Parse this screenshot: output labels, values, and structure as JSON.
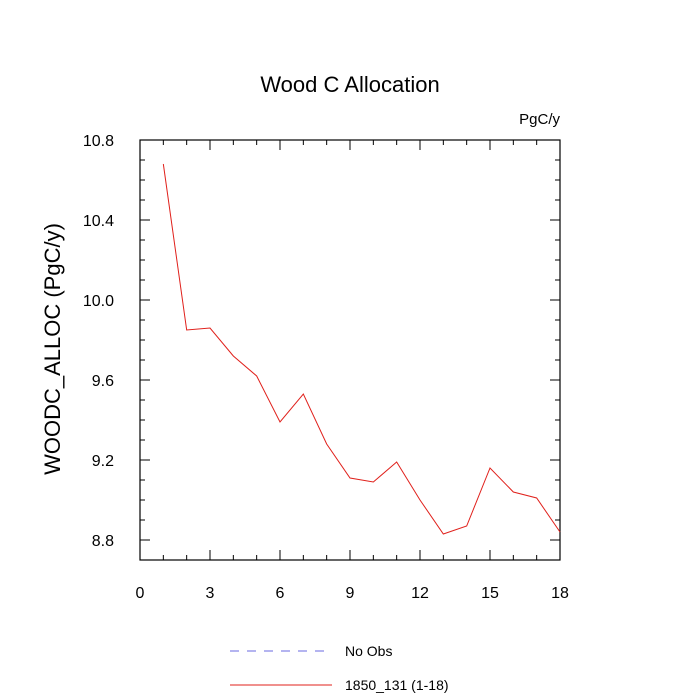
{
  "chart_data": {
    "type": "line",
    "title": "Wood C Allocation",
    "units_label": "PgC/y",
    "xlabel": "",
    "ylabel": "WOODC_ALLOC  (PgC/y)",
    "xlim": [
      0,
      18
    ],
    "ylim": [
      8.7,
      10.8
    ],
    "x_ticks": [
      0,
      3,
      6,
      9,
      12,
      15,
      18
    ],
    "y_ticks": [
      8.8,
      9.2,
      9.6,
      10.0,
      10.4,
      10.8
    ],
    "y_tick_labels": [
      "8.8",
      "9.2",
      "9.6",
      "10.0",
      "10.4",
      "10.8"
    ],
    "grid": false,
    "legend_position": "bottom",
    "series": [
      {
        "name": "1850_131 (1-18)",
        "color": "#e0201b",
        "style": "solid",
        "x": [
          1,
          2,
          3,
          4,
          5,
          6,
          7,
          8,
          9,
          10,
          11,
          12,
          13,
          14,
          15,
          16,
          17,
          18
        ],
        "values": [
          10.68,
          9.85,
          9.86,
          9.72,
          9.62,
          9.39,
          9.53,
          9.28,
          9.11,
          9.09,
          9.19,
          9.0,
          8.83,
          8.87,
          9.16,
          9.04,
          9.01,
          8.84
        ]
      }
    ],
    "legend": [
      {
        "label": "No Obs",
        "color": "#6a6ae0",
        "style": "dashed"
      },
      {
        "label": "1850_131 (1-18)",
        "color": "#e0201b",
        "style": "solid"
      }
    ]
  }
}
